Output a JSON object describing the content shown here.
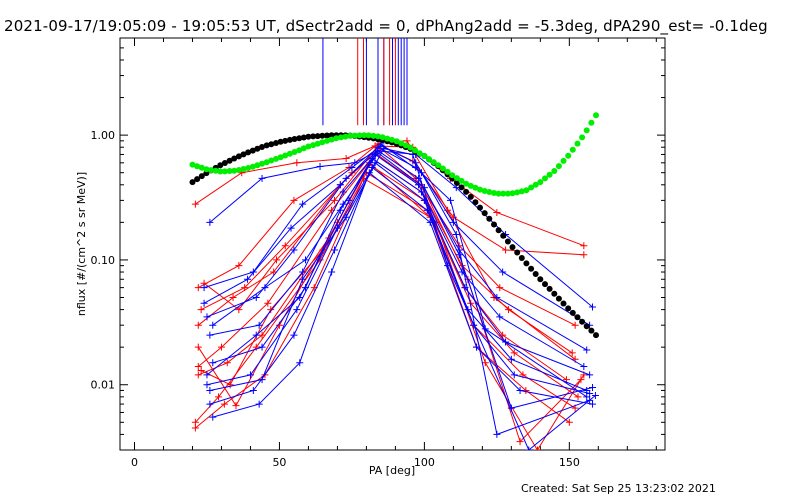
{
  "header": {
    "title": "2021-09-17/19:05:09 - 19:05:53 UT, dSectr2add = 0, dPhAng2add = -5.3deg, dPA290_est= -0.1deg"
  },
  "footer": {
    "created": "Created: Sat Sep 25 13:23:02 2021"
  },
  "colors": {
    "red": "#ff0000",
    "blue": "#0000ff",
    "black": "#000000",
    "green": "#00ee00"
  },
  "chart_data": {
    "type": "line",
    "xlabel": "PA [deg]",
    "ylabel": "nflux [#/(cm^2 s sr MeV)]",
    "xlim": [
      -5,
      183
    ],
    "ylim": [
      0.003,
      6.0
    ],
    "yscale": "log",
    "xticks": [
      0,
      50,
      100,
      150
    ],
    "xtick_labels": [
      "0",
      "50",
      "100",
      "150"
    ],
    "yticks": [
      0.01,
      0.1,
      1.0
    ],
    "ytick_labels": [
      "0.01",
      "0.10",
      "1.00"
    ],
    "vertical_markers": {
      "blue": [
        65,
        80,
        84,
        86,
        89,
        91,
        92,
        93,
        94
      ],
      "red": [
        77,
        79,
        86,
        88,
        90
      ]
    },
    "model_curves": [
      {
        "color": "black",
        "x": [
          20,
          25,
          30,
          35,
          40,
          45,
          50,
          55,
          60,
          65,
          70,
          75,
          80,
          85,
          90,
          95,
          100,
          105,
          110,
          115,
          120,
          125,
          130,
          135,
          140,
          145,
          150,
          155,
          160
        ],
        "y": [
          0.42,
          0.5,
          0.58,
          0.66,
          0.74,
          0.82,
          0.88,
          0.93,
          0.97,
          0.99,
          1.0,
          0.99,
          0.96,
          0.92,
          0.86,
          0.78,
          0.68,
          0.56,
          0.44,
          0.34,
          0.25,
          0.18,
          0.13,
          0.095,
          0.07,
          0.053,
          0.04,
          0.031,
          0.024
        ]
      },
      {
        "color": "green",
        "x": [
          20,
          25,
          30,
          35,
          40,
          45,
          50,
          55,
          60,
          65,
          70,
          75,
          80,
          85,
          90,
          95,
          100,
          105,
          110,
          115,
          120,
          125,
          130,
          135,
          140,
          145,
          150,
          155,
          160
        ],
        "y": [
          0.58,
          0.53,
          0.51,
          0.52,
          0.55,
          0.6,
          0.66,
          0.73,
          0.81,
          0.88,
          0.95,
          0.99,
          1.0,
          0.97,
          0.9,
          0.8,
          0.68,
          0.57,
          0.47,
          0.4,
          0.36,
          0.34,
          0.34,
          0.36,
          0.42,
          0.52,
          0.7,
          1.0,
          1.55
        ]
      }
    ],
    "series": [
      {
        "color": "red",
        "x": [
          21,
          37,
          56,
          73,
          83,
          96,
          109,
          125,
          155
        ],
        "y": [
          0.28,
          0.5,
          0.6,
          0.65,
          0.82,
          0.8,
          0.45,
          0.24,
          0.13
        ]
      },
      {
        "color": "red",
        "x": [
          22,
          36,
          55,
          74,
          84,
          96,
          110,
          128,
          155
        ],
        "y": [
          0.06,
          0.09,
          0.3,
          0.55,
          0.85,
          0.62,
          0.22,
          0.12,
          0.11
        ]
      },
      {
        "color": "red",
        "x": [
          23,
          38,
          52,
          75,
          85,
          97,
          112,
          126,
          152
        ],
        "y": [
          0.04,
          0.06,
          0.13,
          0.5,
          0.78,
          0.45,
          0.13,
          0.06,
          0.03
        ]
      },
      {
        "color": "red",
        "x": [
          22,
          34,
          48,
          71,
          83,
          98,
          113,
          129,
          151
        ],
        "y": [
          0.03,
          0.05,
          0.08,
          0.4,
          0.72,
          0.4,
          0.09,
          0.04,
          0.018
        ]
      },
      {
        "color": "red",
        "x": [
          22,
          30,
          46,
          68,
          82,
          99,
          114,
          127,
          149
        ],
        "y": [
          0.014,
          0.02,
          0.045,
          0.25,
          0.65,
          0.35,
          0.06,
          0.025,
          0.011
        ]
      },
      {
        "color": "red",
        "x": [
          22,
          32,
          44,
          67,
          81,
          100,
          116,
          131,
          153
        ],
        "y": [
          0.012,
          0.015,
          0.025,
          0.15,
          0.58,
          0.3,
          0.045,
          0.018,
          0.008
        ]
      },
      {
        "color": "red",
        "x": [
          21,
          29,
          42,
          64,
          80,
          101,
          117,
          134,
          152
        ],
        "y": [
          0.005,
          0.008,
          0.02,
          0.1,
          0.5,
          0.25,
          0.03,
          0.012,
          0.0065
        ]
      },
      {
        "color": "red",
        "x": [
          21,
          31,
          45,
          62,
          79,
          102,
          118,
          135,
          150
        ],
        "y": [
          0.0045,
          0.007,
          0.012,
          0.06,
          0.45,
          0.22,
          0.02,
          0.009,
          0.005
        ]
      },
      {
        "color": "red",
        "x": [
          22,
          35,
          50,
          70,
          83,
          99,
          115,
          133,
          154
        ],
        "y": [
          0.02,
          0.0068,
          0.03,
          0.2,
          0.7,
          0.4,
          0.07,
          0.0035,
          0.011
        ]
      },
      {
        "color": "red",
        "x": [
          23,
          33,
          47,
          65,
          81,
          104,
          121,
          139,
          155
        ],
        "y": [
          0.013,
          0.01,
          0.04,
          0.12,
          0.6,
          0.2,
          0.015,
          0.003,
          0.012
        ]
      },
      {
        "color": "red",
        "x": [
          24,
          36,
          49,
          69,
          85,
          94,
          108,
          124,
          152
        ],
        "y": [
          0.065,
          0.04,
          0.1,
          0.3,
          0.88,
          0.9,
          0.25,
          0.05,
          0.016
        ]
      },
      {
        "color": "blue",
        "x": [
          26,
          44,
          64,
          76,
          84,
          97,
          111,
          128,
          158
        ],
        "y": [
          0.2,
          0.45,
          0.56,
          0.6,
          0.75,
          0.7,
          0.38,
          0.16,
          0.042
        ]
      },
      {
        "color": "blue",
        "x": [
          24,
          41,
          58,
          75,
          85,
          97,
          110,
          127,
          157
        ],
        "y": [
          0.06,
          0.08,
          0.28,
          0.55,
          0.82,
          0.6,
          0.2,
          0.08,
          0.03
        ]
      },
      {
        "color": "blue",
        "x": [
          25,
          42,
          55,
          73,
          84,
          98,
          112,
          125,
          156
        ],
        "y": [
          0.035,
          0.05,
          0.12,
          0.45,
          0.75,
          0.45,
          0.12,
          0.05,
          0.019
        ]
      },
      {
        "color": "blue",
        "x": [
          26,
          43,
          58,
          72,
          83,
          98,
          113,
          126,
          155
        ],
        "y": [
          0.025,
          0.03,
          0.08,
          0.35,
          0.7,
          0.4,
          0.08,
          0.035,
          0.014
        ]
      },
      {
        "color": "blue",
        "x": [
          27,
          44,
          59,
          71,
          82,
          99,
          114,
          128,
          157
        ],
        "y": [
          0.015,
          0.02,
          0.06,
          0.25,
          0.65,
          0.35,
          0.06,
          0.022,
          0.012
        ]
      },
      {
        "color": "blue",
        "x": [
          25,
          40,
          56,
          70,
          83,
          100,
          115,
          130,
          156
        ],
        "y": [
          0.01,
          0.012,
          0.04,
          0.18,
          0.6,
          0.3,
          0.04,
          0.016,
          0.009
        ]
      },
      {
        "color": "blue",
        "x": [
          26,
          41,
          55,
          69,
          82,
          101,
          117,
          131,
          157
        ],
        "y": [
          0.007,
          0.009,
          0.025,
          0.12,
          0.55,
          0.25,
          0.03,
          0.012,
          0.0085
        ]
      },
      {
        "color": "blue",
        "x": [
          27,
          43,
          57,
          68,
          81,
          102,
          118,
          133,
          158
        ],
        "y": [
          0.0055,
          0.007,
          0.015,
          0.08,
          0.5,
          0.2,
          0.02,
          0.009,
          0.007
        ]
      },
      {
        "color": "blue",
        "x": [
          24,
          39,
          54,
          71,
          84,
          97,
          109,
          121,
          156
        ],
        "y": [
          0.045,
          0.07,
          0.18,
          0.4,
          0.8,
          0.55,
          0.3,
          0.028,
          0.008
        ]
      },
      {
        "color": "blue",
        "x": [
          25,
          42,
          57,
          74,
          85,
          99,
          111,
          125,
          157
        ],
        "y": [
          0.012,
          0.025,
          0.05,
          0.3,
          0.85,
          0.5,
          0.16,
          0.004,
          0.0075
        ]
      },
      {
        "color": "blue",
        "x": [
          26,
          44,
          58,
          73,
          86,
          96,
          108,
          136,
          159
        ],
        "y": [
          0.009,
          0.011,
          0.07,
          0.22,
          0.78,
          0.7,
          0.09,
          0.003,
          0.0082
        ]
      },
      {
        "color": "blue",
        "x": [
          27,
          45,
          59,
          72,
          84,
          100,
          112,
          130,
          158
        ],
        "y": [
          0.03,
          0.06,
          0.1,
          0.28,
          0.72,
          0.38,
          0.11,
          0.0065,
          0.0095
        ]
      }
    ]
  }
}
